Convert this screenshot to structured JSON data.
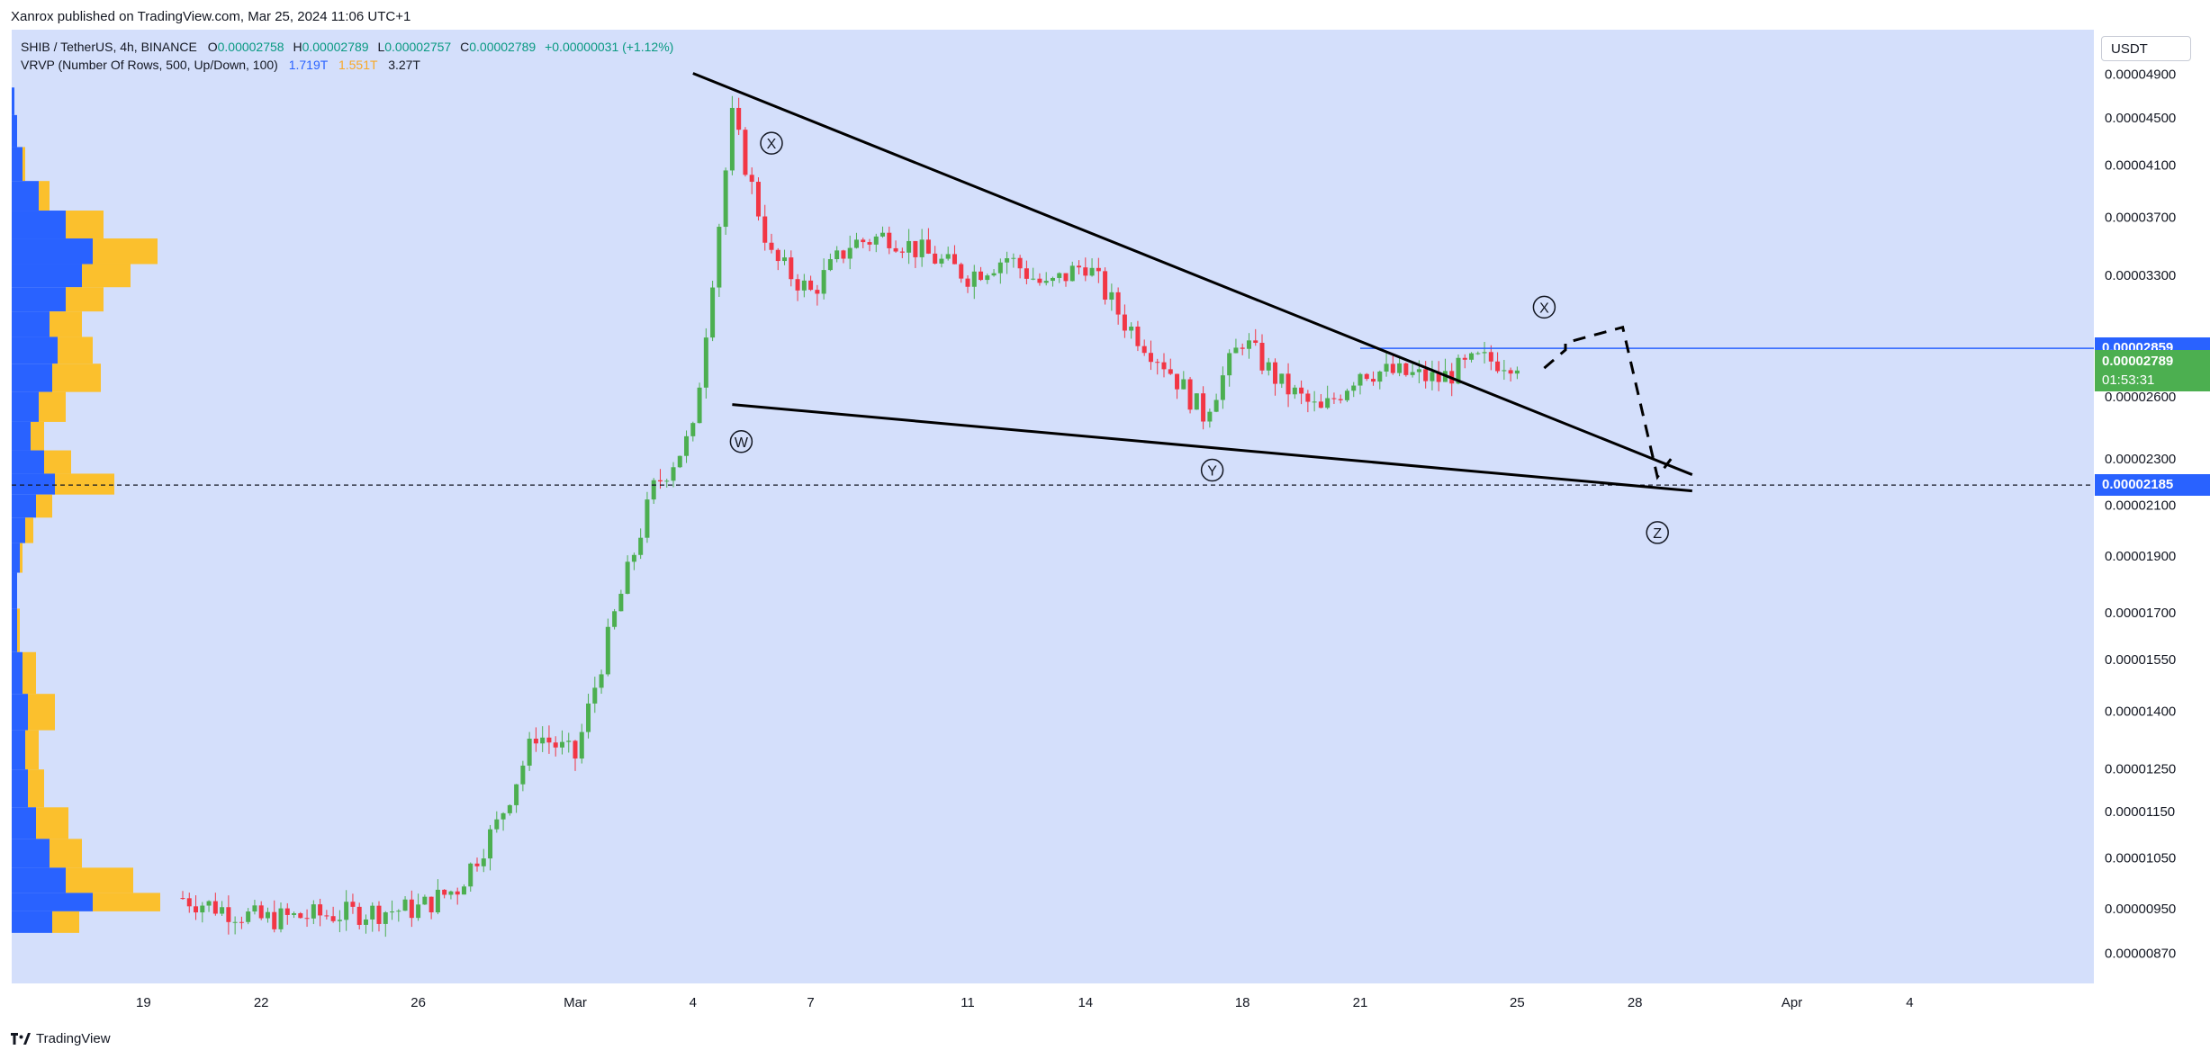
{
  "header": {
    "published_text": "Xanrox published on TradingView.com, Mar 25, 2024 11:06 UTC+1"
  },
  "legend": {
    "symbol": "SHIB / TetherUS, 4h, BINANCE",
    "open_label": "O",
    "open": "0.00002758",
    "high_label": "H",
    "high": "0.00002789",
    "low_label": "L",
    "low": "0.00002757",
    "close_label": "C",
    "close": "0.00002789",
    "change": "+0.00000031 (+1.12%)",
    "indicator": "VRVP (Number Of Rows, 500, Up/Down, 100)",
    "vol_up": "1.719T",
    "vol_down": "1.551T",
    "vol_total": "3.27T"
  },
  "currency": "USDT",
  "price_tags": {
    "resistance": {
      "price": "0.00002859",
      "color": "#2962ff"
    },
    "current": {
      "price": "0.00002789",
      "countdown": "01:53:31",
      "color": "#4caf50"
    },
    "support": {
      "price": "0.00002185",
      "color": "#2962ff"
    }
  },
  "footer": {
    "brand": "TradingView"
  },
  "colors": {
    "background": "#d4dffb",
    "up": "#4caf50",
    "down": "#f23645",
    "vp_up": "#2962ff",
    "vp_down": "#fbc02d",
    "pattern": "#000000"
  },
  "chart_data": {
    "type": "candlestick",
    "symbol": "SHIB/USDT",
    "timeframe": "4h",
    "y_scale": "log",
    "ylim": [
      8.2e-06,
      5.35e-05
    ],
    "y_ticks": [
      "0.00004900",
      "0.00004500",
      "0.00004100",
      "0.00003700",
      "0.00003300",
      "0.00002600",
      "0.00002300",
      "0.00002100",
      "0.00001900",
      "0.00001700",
      "0.00001550",
      "0.00001400",
      "0.00001250",
      "0.00001150",
      "0.00001050",
      "0.00000950",
      "0.00000870"
    ],
    "x_ticks": [
      {
        "label": "19",
        "date": "2024-02-19"
      },
      {
        "label": "22",
        "date": "2024-02-22"
      },
      {
        "label": "26",
        "date": "2024-02-26"
      },
      {
        "label": "Mar",
        "date": "2024-03-01"
      },
      {
        "label": "4",
        "date": "2024-03-04"
      },
      {
        "label": "7",
        "date": "2024-03-07"
      },
      {
        "label": "11",
        "date": "2024-03-11"
      },
      {
        "label": "14",
        "date": "2024-03-14"
      },
      {
        "label": "18",
        "date": "2024-03-18"
      },
      {
        "label": "21",
        "date": "2024-03-21"
      },
      {
        "label": "25",
        "date": "2024-03-25"
      },
      {
        "label": "28",
        "date": "2024-03-28"
      },
      {
        "label": "Apr",
        "date": "2024-04-01"
      },
      {
        "label": "4",
        "date": "2024-04-04"
      }
    ],
    "price_path": [
      {
        "date": "2024-02-20",
        "close": 9.7e-06
      },
      {
        "date": "2024-02-22",
        "close": 9.3e-06
      },
      {
        "date": "2024-02-24",
        "close": 9.4e-06
      },
      {
        "date": "2024-02-26",
        "close": 9.5e-06
      },
      {
        "date": "2024-02-27",
        "close": 9.9e-06
      },
      {
        "date": "2024-02-28",
        "close": 1.12e-05
      },
      {
        "date": "2024-02-29",
        "close": 1.34e-05
      },
      {
        "date": "2024-03-01",
        "close": 1.28e-05
      },
      {
        "date": "2024-03-02",
        "close": 1.69e-05
      },
      {
        "date": "2024-03-03",
        "close": 2.17e-05
      },
      {
        "date": "2024-03-04",
        "close": 2.42e-05
      },
      {
        "date": "2024-03-05",
        "close": 4.5e-05
      },
      {
        "date": "2024-03-06",
        "close": 3.42e-05
      },
      {
        "date": "2024-03-07",
        "close": 3.19e-05
      },
      {
        "date": "2024-03-08",
        "close": 3.51e-05
      },
      {
        "date": "2024-03-09",
        "close": 3.57e-05
      },
      {
        "date": "2024-03-11",
        "close": 3.3e-05
      },
      {
        "date": "2024-03-12",
        "close": 3.42e-05
      },
      {
        "date": "2024-03-13",
        "close": 3.22e-05
      },
      {
        "date": "2024-03-14",
        "close": 3.38e-05
      },
      {
        "date": "2024-03-15",
        "close": 3.01e-05
      },
      {
        "date": "2024-03-16",
        "close": 2.78e-05
      },
      {
        "date": "2024-03-17",
        "close": 2.51e-05
      },
      {
        "date": "2024-03-18",
        "close": 2.91e-05
      },
      {
        "date": "2024-03-19",
        "close": 2.66e-05
      },
      {
        "date": "2024-03-20",
        "close": 2.52e-05
      },
      {
        "date": "2024-03-21",
        "close": 2.74e-05
      },
      {
        "date": "2024-03-22",
        "close": 2.72e-05
      },
      {
        "date": "2024-03-23",
        "close": 2.69e-05
      },
      {
        "date": "2024-03-24",
        "close": 2.79e-05
      },
      {
        "date": "2024-03-25",
        "close": 2.79e-05
      }
    ],
    "lines": {
      "upper_trendline": [
        {
          "date": "2024-03-04",
          "price": 4.91e-05
        },
        {
          "date": "2024-03-29",
          "price": 2.23e-05
        }
      ],
      "lower_trendline": [
        {
          "date": "2024-03-05",
          "price": 2.56e-05
        },
        {
          "date": "2024-03-29",
          "price": 2.16e-05
        }
      ],
      "projection": [
        {
          "date": "2024-03-25",
          "price": 2.75e-05
        },
        {
          "date": "2024-03-26",
          "price": 2.85e-05
        },
        {
          "date": "2024-03-26",
          "price": 2.89e-05
        },
        {
          "date": "2024-03-27",
          "price": 2.98e-05
        },
        {
          "date": "2024-03-28",
          "price": 2.22e-05
        },
        {
          "date": "2024-03-28",
          "price": 2.3e-05
        }
      ],
      "resistance_level": 2.859e-05,
      "support_level": 2.185e-05
    },
    "annotations": [
      {
        "label": "W",
        "date": "2024-03-05",
        "price": 2.38e-05
      },
      {
        "label": "X",
        "date": "2024-03-06",
        "price": 4.28e-05
      },
      {
        "label": "Y",
        "date": "2024-03-17",
        "price": 2.25e-05
      },
      {
        "label": "X",
        "date": "2024-03-25",
        "price": 3.1e-05
      },
      {
        "label": "Z",
        "date": "2024-03-28",
        "price": 1.99e-05
      }
    ],
    "volume_profile": {
      "type": "VRVP",
      "rows": [
        {
          "price": 4.65e-05,
          "up": 0.01,
          "down": 0.01
        },
        {
          "price": 4.4e-05,
          "up": 0.02,
          "down": 0.02
        },
        {
          "price": 4.1e-05,
          "up": 0.04,
          "down": 0.05
        },
        {
          "price": 3.85e-05,
          "up": 0.1,
          "down": 0.14
        },
        {
          "price": 3.65e-05,
          "up": 0.2,
          "down": 0.34
        },
        {
          "price": 3.45e-05,
          "up": 0.3,
          "down": 0.54
        },
        {
          "price": 3.3e-05,
          "up": 0.26,
          "down": 0.44
        },
        {
          "price": 3.15e-05,
          "up": 0.2,
          "down": 0.34
        },
        {
          "price": 3e-05,
          "up": 0.14,
          "down": 0.26
        },
        {
          "price": 2.85e-05,
          "up": 0.17,
          "down": 0.3
        },
        {
          "price": 2.7e-05,
          "up": 0.15,
          "down": 0.33
        },
        {
          "price": 2.55e-05,
          "up": 0.1,
          "down": 0.2
        },
        {
          "price": 2.4e-05,
          "up": 0.07,
          "down": 0.12
        },
        {
          "price": 2.28e-05,
          "up": 0.12,
          "down": 0.22
        },
        {
          "price": 2.19e-05,
          "up": 0.16,
          "down": 0.38
        },
        {
          "price": 2.1e-05,
          "up": 0.09,
          "down": 0.15
        },
        {
          "price": 2e-05,
          "up": 0.05,
          "down": 0.08
        },
        {
          "price": 1.9e-05,
          "up": 0.03,
          "down": 0.04
        },
        {
          "price": 1.78e-05,
          "up": 0.02,
          "down": 0.02
        },
        {
          "price": 1.65e-05,
          "up": 0.02,
          "down": 0.03
        },
        {
          "price": 1.5e-05,
          "up": 0.04,
          "down": 0.09
        },
        {
          "price": 1.4e-05,
          "up": 0.06,
          "down": 0.16
        },
        {
          "price": 1.3e-05,
          "up": 0.05,
          "down": 0.1
        },
        {
          "price": 1.2e-05,
          "up": 0.06,
          "down": 0.12
        },
        {
          "price": 1.12e-05,
          "up": 0.09,
          "down": 0.21
        },
        {
          "price": 1.06e-05,
          "up": 0.14,
          "down": 0.26
        },
        {
          "price": 1e-05,
          "up": 0.2,
          "down": 0.45
        },
        {
          "price": 9.6e-06,
          "up": 0.3,
          "down": 0.55
        },
        {
          "price": 9.3e-06,
          "up": 0.15,
          "down": 0.25
        }
      ]
    }
  }
}
